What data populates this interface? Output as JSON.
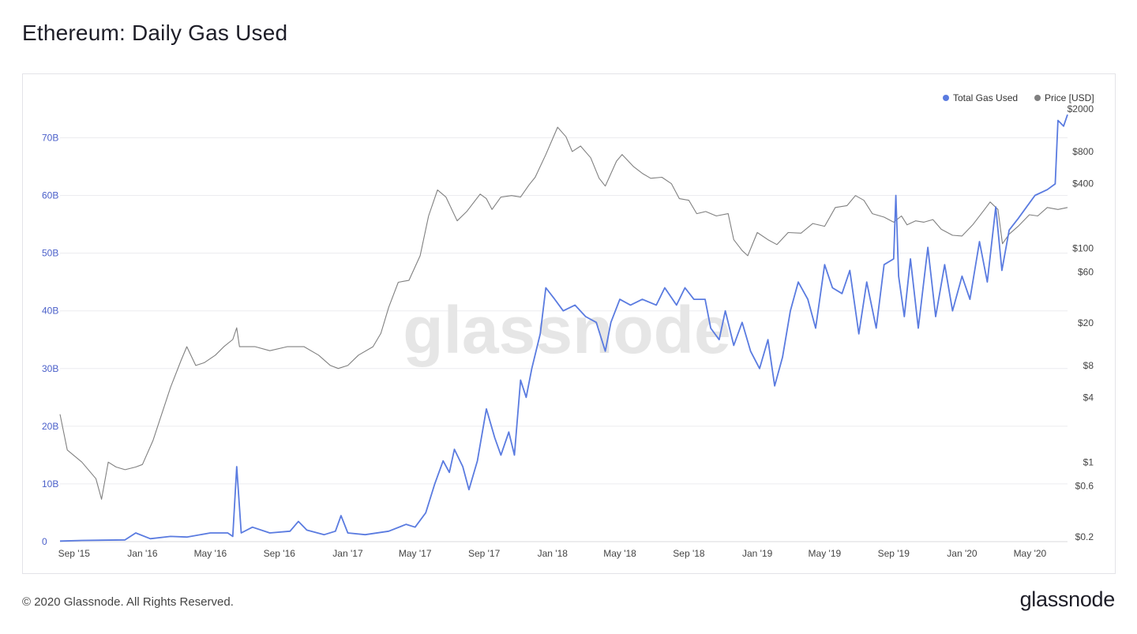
{
  "page": {
    "title": "Ethereum: Daily Gas Used",
    "footer_copyright": "© 2020 Glassnode. All Rights Reserved.",
    "footer_logo": "glassnode",
    "watermark": "glassnode"
  },
  "colors": {
    "gas": "#5a7be0",
    "price": "#808080",
    "grid": "#ececef",
    "axis_text": "#444444",
    "gas_axis_text": "#4a5fc9"
  },
  "chart_data": {
    "type": "line",
    "title": "Ethereum: Daily Gas Used",
    "grid": true,
    "legend_position": "top-right",
    "x_ticks": [
      "Sep '15",
      "Jan '16",
      "May '16",
      "Sep '16",
      "Jan '17",
      "May '17",
      "Sep '17",
      "Jan '18",
      "May '18",
      "Sep '18",
      "Jan '19",
      "May '19",
      "Sep '19",
      "Jan '20",
      "May '20"
    ],
    "x_range": [
      "2015-08-07",
      "2020-07-07"
    ],
    "y_left": {
      "ticks": [
        "0",
        "10B",
        "20B",
        "30B",
        "40B",
        "50B",
        "60B",
        "70B"
      ],
      "ylim": [
        0,
        78
      ]
    },
    "y_right": {
      "ticks": [
        "$0.2",
        "$0.6",
        "$1",
        "$4",
        "$8",
        "$20",
        "$60",
        "$100",
        "$400",
        "$800",
        "$2000"
      ],
      "scale": "log",
      "ylim": [
        0.2,
        2000
      ]
    },
    "series": [
      {
        "name": "Total Gas Used",
        "unit": "B",
        "axis": "left",
        "points": [
          [
            "2015-08-07",
            0.1
          ],
          [
            "2015-09-15",
            0.2
          ],
          [
            "2015-12-01",
            0.3
          ],
          [
            "2015-12-20",
            1.5
          ],
          [
            "2016-01-15",
            0.5
          ],
          [
            "2016-02-20",
            0.9
          ],
          [
            "2016-03-20",
            0.8
          ],
          [
            "2016-05-01",
            1.5
          ],
          [
            "2016-06-01",
            1.5
          ],
          [
            "2016-06-10",
            0.9
          ],
          [
            "2016-06-17",
            13
          ],
          [
            "2016-06-25",
            1.5
          ],
          [
            "2016-07-15",
            2.5
          ],
          [
            "2016-08-15",
            1.5
          ],
          [
            "2016-09-20",
            1.8
          ],
          [
            "2016-10-05",
            3.5
          ],
          [
            "2016-10-20",
            2.0
          ],
          [
            "2016-11-20",
            1.2
          ],
          [
            "2016-12-10",
            1.8
          ],
          [
            "2016-12-20",
            4.5
          ],
          [
            "2017-01-01",
            1.5
          ],
          [
            "2017-02-01",
            1.2
          ],
          [
            "2017-03-15",
            1.8
          ],
          [
            "2017-04-15",
            3
          ],
          [
            "2017-05-01",
            2.5
          ],
          [
            "2017-05-20",
            5
          ],
          [
            "2017-06-05",
            10
          ],
          [
            "2017-06-20",
            14
          ],
          [
            "2017-07-01",
            12
          ],
          [
            "2017-07-10",
            16
          ],
          [
            "2017-07-25",
            13
          ],
          [
            "2017-08-05",
            9
          ],
          [
            "2017-08-20",
            14
          ],
          [
            "2017-09-05",
            23
          ],
          [
            "2017-09-20",
            18
          ],
          [
            "2017-10-01",
            15
          ],
          [
            "2017-10-15",
            19
          ],
          [
            "2017-10-25",
            15
          ],
          [
            "2017-11-05",
            28
          ],
          [
            "2017-11-15",
            25
          ],
          [
            "2017-11-25",
            30
          ],
          [
            "2017-12-10",
            36
          ],
          [
            "2017-12-20",
            44
          ],
          [
            "2018-01-05",
            42
          ],
          [
            "2018-01-20",
            40
          ],
          [
            "2018-02-10",
            41
          ],
          [
            "2018-03-01",
            39
          ],
          [
            "2018-03-20",
            38
          ],
          [
            "2018-04-05",
            33
          ],
          [
            "2018-04-15",
            38
          ],
          [
            "2018-05-01",
            42
          ],
          [
            "2018-05-20",
            41
          ],
          [
            "2018-06-10",
            42
          ],
          [
            "2018-07-05",
            41
          ],
          [
            "2018-07-20",
            44
          ],
          [
            "2018-08-10",
            41
          ],
          [
            "2018-08-25",
            44
          ],
          [
            "2018-09-10",
            42
          ],
          [
            "2018-09-30",
            42
          ],
          [
            "2018-10-10",
            37
          ],
          [
            "2018-10-25",
            35
          ],
          [
            "2018-11-05",
            40
          ],
          [
            "2018-11-20",
            34
          ],
          [
            "2018-12-05",
            38
          ],
          [
            "2018-12-20",
            33
          ],
          [
            "2019-01-05",
            30
          ],
          [
            "2019-01-20",
            35
          ],
          [
            "2019-02-01",
            27
          ],
          [
            "2019-02-15",
            32
          ],
          [
            "2019-03-01",
            40
          ],
          [
            "2019-03-15",
            45
          ],
          [
            "2019-04-01",
            42
          ],
          [
            "2019-04-15",
            37
          ],
          [
            "2019-05-01",
            48
          ],
          [
            "2019-05-15",
            44
          ],
          [
            "2019-06-01",
            43
          ],
          [
            "2019-06-15",
            47
          ],
          [
            "2019-07-01",
            36
          ],
          [
            "2019-07-15",
            45
          ],
          [
            "2019-08-01",
            37
          ],
          [
            "2019-08-15",
            48
          ],
          [
            "2019-09-01",
            49
          ],
          [
            "2019-09-05",
            60
          ],
          [
            "2019-09-10",
            46
          ],
          [
            "2019-09-20",
            39
          ],
          [
            "2019-10-01",
            49
          ],
          [
            "2019-10-15",
            37
          ],
          [
            "2019-11-01",
            51
          ],
          [
            "2019-11-15",
            39
          ],
          [
            "2019-12-01",
            48
          ],
          [
            "2019-12-15",
            40
          ],
          [
            "2020-01-01",
            46
          ],
          [
            "2020-01-15",
            42
          ],
          [
            "2020-02-01",
            52
          ],
          [
            "2020-02-15",
            45
          ],
          [
            "2020-03-01",
            58
          ],
          [
            "2020-03-12",
            47
          ],
          [
            "2020-03-25",
            54
          ],
          [
            "2020-04-10",
            56
          ],
          [
            "2020-04-25",
            58
          ],
          [
            "2020-05-10",
            60
          ],
          [
            "2020-06-01",
            61
          ],
          [
            "2020-06-15",
            62
          ],
          [
            "2020-06-20",
            73
          ],
          [
            "2020-06-30",
            72
          ],
          [
            "2020-07-07",
            74
          ]
        ]
      },
      {
        "name": "Price [USD]",
        "unit": "USD",
        "axis": "right",
        "points": [
          [
            "2015-08-07",
            2.8
          ],
          [
            "2015-08-20",
            1.3
          ],
          [
            "2015-09-15",
            1.0
          ],
          [
            "2015-10-10",
            0.7
          ],
          [
            "2015-10-20",
            0.45
          ],
          [
            "2015-11-01",
            1.0
          ],
          [
            "2015-11-15",
            0.9
          ],
          [
            "2015-12-01",
            0.85
          ],
          [
            "2015-12-20",
            0.9
          ],
          [
            "2016-01-01",
            0.95
          ],
          [
            "2016-01-20",
            1.6
          ],
          [
            "2016-02-01",
            2.5
          ],
          [
            "2016-02-20",
            5
          ],
          [
            "2016-03-10",
            9
          ],
          [
            "2016-03-20",
            12
          ],
          [
            "2016-04-05",
            8
          ],
          [
            "2016-04-20",
            8.5
          ],
          [
            "2016-05-10",
            10
          ],
          [
            "2016-05-25",
            12
          ],
          [
            "2016-06-10",
            14
          ],
          [
            "2016-06-17",
            18
          ],
          [
            "2016-06-22",
            12
          ],
          [
            "2016-07-01",
            12
          ],
          [
            "2016-07-20",
            12
          ],
          [
            "2016-08-15",
            11
          ],
          [
            "2016-09-15",
            12
          ],
          [
            "2016-10-15",
            12
          ],
          [
            "2016-11-10",
            10
          ],
          [
            "2016-12-01",
            8
          ],
          [
            "2016-12-15",
            7.5
          ],
          [
            "2017-01-01",
            8
          ],
          [
            "2017-01-20",
            10
          ],
          [
            "2017-02-15",
            12
          ],
          [
            "2017-03-01",
            16
          ],
          [
            "2017-03-15",
            28
          ],
          [
            "2017-04-01",
            48
          ],
          [
            "2017-04-20",
            50
          ],
          [
            "2017-05-10",
            85
          ],
          [
            "2017-05-25",
            200
          ],
          [
            "2017-06-10",
            350
          ],
          [
            "2017-06-25",
            300
          ],
          [
            "2017-07-15",
            180
          ],
          [
            "2017-08-01",
            220
          ],
          [
            "2017-08-25",
            320
          ],
          [
            "2017-09-05",
            290
          ],
          [
            "2017-09-15",
            230
          ],
          [
            "2017-10-01",
            300
          ],
          [
            "2017-10-20",
            310
          ],
          [
            "2017-11-05",
            300
          ],
          [
            "2017-11-20",
            390
          ],
          [
            "2017-12-01",
            460
          ],
          [
            "2017-12-20",
            750
          ],
          [
            "2018-01-10",
            1350
          ],
          [
            "2018-01-25",
            1100
          ],
          [
            "2018-02-05",
            800
          ],
          [
            "2018-02-20",
            900
          ],
          [
            "2018-03-10",
            700
          ],
          [
            "2018-03-25",
            450
          ],
          [
            "2018-04-05",
            380
          ],
          [
            "2018-04-25",
            650
          ],
          [
            "2018-05-05",
            750
          ],
          [
            "2018-05-25",
            580
          ],
          [
            "2018-06-10",
            500
          ],
          [
            "2018-06-25",
            450
          ],
          [
            "2018-07-15",
            460
          ],
          [
            "2018-08-01",
            400
          ],
          [
            "2018-08-15",
            290
          ],
          [
            "2018-09-01",
            280
          ],
          [
            "2018-09-15",
            210
          ],
          [
            "2018-10-01",
            220
          ],
          [
            "2018-10-20",
            200
          ],
          [
            "2018-11-10",
            210
          ],
          [
            "2018-11-20",
            120
          ],
          [
            "2018-12-05",
            95
          ],
          [
            "2018-12-15",
            85
          ],
          [
            "2019-01-01",
            140
          ],
          [
            "2019-01-20",
            120
          ],
          [
            "2019-02-05",
            108
          ],
          [
            "2019-02-25",
            140
          ],
          [
            "2019-03-20",
            138
          ],
          [
            "2019-04-10",
            170
          ],
          [
            "2019-05-01",
            160
          ],
          [
            "2019-05-20",
            240
          ],
          [
            "2019-06-10",
            250
          ],
          [
            "2019-06-25",
            310
          ],
          [
            "2019-07-10",
            280
          ],
          [
            "2019-07-25",
            210
          ],
          [
            "2019-08-15",
            195
          ],
          [
            "2019-09-01",
            175
          ],
          [
            "2019-09-15",
            200
          ],
          [
            "2019-09-25",
            165
          ],
          [
            "2019-10-10",
            180
          ],
          [
            "2019-10-25",
            175
          ],
          [
            "2019-11-10",
            185
          ],
          [
            "2019-11-25",
            150
          ],
          [
            "2019-12-15",
            132
          ],
          [
            "2020-01-01",
            130
          ],
          [
            "2020-01-20",
            165
          ],
          [
            "2020-02-10",
            230
          ],
          [
            "2020-02-20",
            270
          ],
          [
            "2020-03-05",
            230
          ],
          [
            "2020-03-13",
            110
          ],
          [
            "2020-03-25",
            135
          ],
          [
            "2020-04-10",
            160
          ],
          [
            "2020-04-30",
            205
          ],
          [
            "2020-05-15",
            200
          ],
          [
            "2020-06-01",
            240
          ],
          [
            "2020-06-20",
            230
          ],
          [
            "2020-07-07",
            240
          ]
        ]
      }
    ]
  }
}
